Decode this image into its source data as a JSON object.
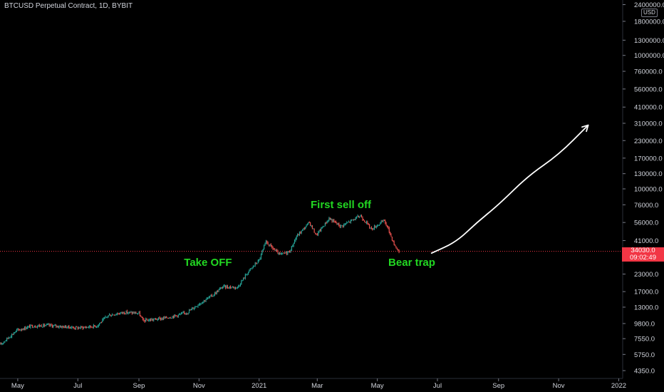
{
  "header": {
    "title": "BTCUSD Perpetual Contract, 1D, BYBIT"
  },
  "price_scale": {
    "currency_badge": "USD",
    "current_price": "34030.0",
    "countdown": "09:02:49",
    "current_price_color": "#f23645"
  },
  "colors": {
    "background": "#000000",
    "up_candle": "#26a69a",
    "down_candle": "#ef5350",
    "annotation_text": "#22d822",
    "arrow": "#ffffff",
    "axis_text": "#d1d4dc",
    "axis_line": "#2a2e39"
  },
  "icons": {
    "projection_arrow": "arrow-up-right-icon"
  },
  "chart_data": {
    "type": "candlestick",
    "title": "BTCUSD Perpetual Contract, 1D, BYBIT",
    "y_scale": "log",
    "grid": false,
    "ylim": [
      3800,
      2600000
    ],
    "x_range": [
      "2020-04-13",
      "2022-01-05"
    ],
    "x_ticks": [
      {
        "label": "May",
        "date": "2020-05-01"
      },
      {
        "label": "Jul",
        "date": "2020-07-01"
      },
      {
        "label": "Sep",
        "date": "2020-09-01"
      },
      {
        "label": "Nov",
        "date": "2020-11-01"
      },
      {
        "label": "2021",
        "date": "2021-01-01"
      },
      {
        "label": "Mar",
        "date": "2021-03-01"
      },
      {
        "label": "May",
        "date": "2021-05-01"
      },
      {
        "label": "Jul",
        "date": "2021-07-01"
      },
      {
        "label": "Sep",
        "date": "2021-09-01"
      },
      {
        "label": "Nov",
        "date": "2021-11-01"
      },
      {
        "label": "2022",
        "date": "2022-01-01"
      }
    ],
    "y_ticks": [
      {
        "label": "2400000.0",
        "value": 2400000
      },
      {
        "label": "1800000.0",
        "value": 1800000
      },
      {
        "label": "1300000.0",
        "value": 1300000
      },
      {
        "label": "1000000.0",
        "value": 1000000
      },
      {
        "label": "760000.0",
        "value": 760000
      },
      {
        "label": "560000.0",
        "value": 560000
      },
      {
        "label": "410000.0",
        "value": 410000
      },
      {
        "label": "310000.0",
        "value": 310000
      },
      {
        "label": "230000.0",
        "value": 230000
      },
      {
        "label": "170000.0",
        "value": 170000
      },
      {
        "label": "130000.0",
        "value": 130000
      },
      {
        "label": "100000.0",
        "value": 100000
      },
      {
        "label": "76000.0",
        "value": 76000
      },
      {
        "label": "56000.0",
        "value": 56000
      },
      {
        "label": "41000.0",
        "value": 41000
      },
      {
        "label": "23000.0",
        "value": 23000
      },
      {
        "label": "17000.0",
        "value": 17000
      },
      {
        "label": "13000.0",
        "value": 13000
      },
      {
        "label": "9800.0",
        "value": 9800
      },
      {
        "label": "7550.0",
        "value": 7550
      },
      {
        "label": "5750.0",
        "value": 5750
      },
      {
        "label": "4350.0",
        "value": 4350
      }
    ],
    "series": [
      {
        "name": "BTCUSD",
        "type": "candlestick",
        "trend": [
          {
            "date": "2020-04-13",
            "close": 6800
          },
          {
            "date": "2020-04-30",
            "close": 8700
          },
          {
            "date": "2020-05-15",
            "close": 9400
          },
          {
            "date": "2020-06-01",
            "close": 9500
          },
          {
            "date": "2020-06-15",
            "close": 9300
          },
          {
            "date": "2020-07-01",
            "close": 9100
          },
          {
            "date": "2020-07-20",
            "close": 9400
          },
          {
            "date": "2020-08-01",
            "close": 11300
          },
          {
            "date": "2020-08-17",
            "close": 11900
          },
          {
            "date": "2020-09-01",
            "close": 11700
          },
          {
            "date": "2020-09-05",
            "close": 10300
          },
          {
            "date": "2020-09-25",
            "close": 10700
          },
          {
            "date": "2020-10-10",
            "close": 11300
          },
          {
            "date": "2020-10-20",
            "close": 11900
          },
          {
            "date": "2020-11-01",
            "close": 13800
          },
          {
            "date": "2020-11-15",
            "close": 16000
          },
          {
            "date": "2020-11-25",
            "close": 18500
          },
          {
            "date": "2020-12-10",
            "close": 18300
          },
          {
            "date": "2020-12-20",
            "close": 23500
          },
          {
            "date": "2021-01-01",
            "close": 29300
          },
          {
            "date": "2021-01-08",
            "close": 40000
          },
          {
            "date": "2021-01-22",
            "close": 32000
          },
          {
            "date": "2021-02-01",
            "close": 34000
          },
          {
            "date": "2021-02-08",
            "close": 44000
          },
          {
            "date": "2021-02-21",
            "close": 56000
          },
          {
            "date": "2021-02-28",
            "close": 45000
          },
          {
            "date": "2021-03-13",
            "close": 60000
          },
          {
            "date": "2021-03-25",
            "close": 52500
          },
          {
            "date": "2021-04-14",
            "close": 63000
          },
          {
            "date": "2021-04-25",
            "close": 50000
          },
          {
            "date": "2021-05-08",
            "close": 58000
          },
          {
            "date": "2021-05-12",
            "close": 50000
          },
          {
            "date": "2021-05-19",
            "close": 37000
          },
          {
            "date": "2021-05-23",
            "close": 34030
          }
        ]
      },
      {
        "name": "",
        "type": "projection",
        "points": [
          {
            "date": "2021-06-25",
            "value": 33000
          },
          {
            "date": "2021-07-20",
            "value": 40000
          },
          {
            "date": "2021-08-10",
            "value": 56000
          },
          {
            "date": "2021-09-01",
            "value": 76000
          },
          {
            "date": "2021-10-01",
            "value": 125000
          },
          {
            "date": "2021-11-01",
            "value": 180000
          },
          {
            "date": "2021-12-01",
            "value": 300000
          }
        ]
      }
    ],
    "annotations": [
      {
        "text": "Take OFF",
        "date": "2020-11-10",
        "value": 28000
      },
      {
        "text": "First sell off",
        "date": "2021-03-25",
        "value": 76000
      },
      {
        "text": "Bear trap",
        "date": "2021-06-05",
        "value": 28000
      }
    ]
  }
}
